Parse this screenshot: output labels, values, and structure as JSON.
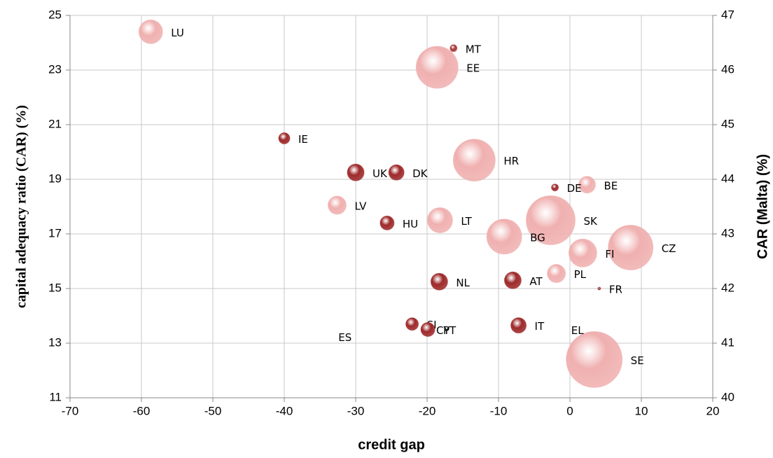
{
  "chart_data": {
    "type": "bubble",
    "x_label": "credit gap",
    "y_label": "capital adequacy ratio  (CAR) (%)",
    "y2_label": "CAR (Malta) (%)",
    "xlim": [
      -70,
      20
    ],
    "xticks": [
      -70,
      -60,
      -50,
      -40,
      -30,
      -20,
      -10,
      0,
      10,
      20
    ],
    "ylim": [
      11,
      25
    ],
    "yticks": [
      11,
      13,
      15,
      17,
      19,
      21,
      23,
      25
    ],
    "y2lim": [
      40,
      47
    ],
    "y2ticks": [
      40,
      41,
      42,
      43,
      44,
      45,
      46,
      47
    ],
    "grid": true,
    "series": [
      {
        "color": "#f0b0b0",
        "labels": [
          "LU",
          "EE",
          "HR",
          "BE",
          "LV",
          "LT",
          "SK",
          "BG",
          "CZ",
          "FI",
          "PL",
          "SE"
        ],
        "x": [
          -58.7,
          -18.6,
          -13.4,
          2.4,
          -32.6,
          -18.2,
          -2.7,
          -9.2,
          8.5,
          1.8,
          -1.9,
          3.4
        ],
        "values": [
          24.4,
          23.1,
          19.7,
          18.8,
          18.05,
          17.5,
          17.5,
          16.9,
          16.5,
          16.3,
          15.55,
          12.4
        ],
        "sizes": [
          17,
          30,
          30,
          12,
          13,
          18,
          35,
          25,
          32,
          20,
          13,
          40
        ]
      },
      {
        "color": "#9e2a2b",
        "labels": [
          "IE",
          "UK",
          "DK",
          "DE",
          "HU",
          "NL",
          "AT",
          "FR",
          "SI",
          "PT",
          "CY",
          "IT",
          "ES",
          "EL"
        ],
        "x": [
          -40,
          -30,
          -24.3,
          -2.1,
          -25.6,
          -18.3,
          -8.0,
          4.1,
          -22.1,
          -19.9,
          -19.9,
          -7.2,
          -33.6,
          -1.0
        ],
        "values": [
          20.5,
          19.25,
          19.25,
          18.7,
          17.4,
          15.25,
          15.3,
          15.0,
          13.7,
          13.5,
          13.5,
          13.65,
          13.25,
          13.5
        ],
        "sizes": [
          8,
          12,
          11,
          5,
          10,
          12,
          12,
          2,
          9,
          10,
          0,
          11,
          0,
          0
        ]
      },
      {
        "color": "#a83a3a",
        "axis": "y2",
        "labels": [
          "MT"
        ],
        "x": [
          -16.3
        ],
        "values": [
          46.4
        ],
        "sizes": [
          5
        ]
      }
    ]
  }
}
